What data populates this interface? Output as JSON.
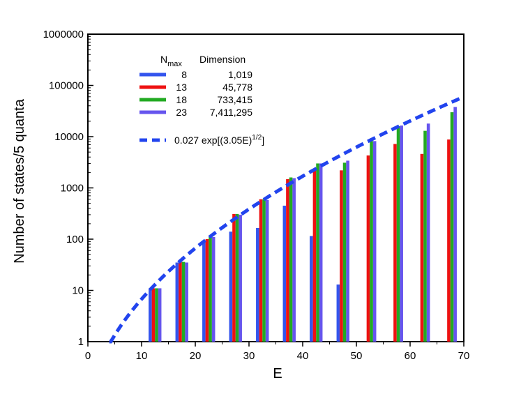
{
  "chart_data": {
    "type": "bar",
    "xlabel": "E",
    "ylabel": "Number of states/5 quanta",
    "xlim": [
      0,
      70
    ],
    "ylim": [
      1,
      1000000
    ],
    "yscale": "log",
    "x_ticks": [
      "0",
      "10",
      "20",
      "30",
      "40",
      "50",
      "60",
      "70"
    ],
    "y_ticks": [
      "1",
      "10",
      "100",
      "1000",
      "10000",
      "100000",
      "1000000"
    ],
    "grid": false,
    "legend_position": "top-left",
    "legend_header": {
      "nmax": "N",
      "nmax_sub": "max",
      "dimension": "Dimension"
    },
    "categories": [
      12.5,
      17.5,
      22.5,
      27.5,
      32.5,
      37.5,
      42.5,
      47.5,
      52.5,
      57.5,
      62.5,
      67.5
    ],
    "series": [
      {
        "name": "8",
        "dimension": "1,019",
        "color": "#3355ee",
        "values": [
          11,
          35,
          90,
          140,
          165,
          450,
          115,
          13,
          null,
          null,
          null,
          null
        ]
      },
      {
        "name": "13",
        "dimension": "45,778",
        "color": "#ee1111",
        "values": [
          11,
          36,
          100,
          310,
          600,
          1480,
          2200,
          2200,
          4300,
          7200,
          4600,
          8800
        ]
      },
      {
        "name": "18",
        "dimension": "733,415",
        "color": "#22aa22",
        "values": [
          11,
          36,
          110,
          310,
          600,
          1600,
          3000,
          3100,
          8200,
          16000,
          13000,
          30000
        ]
      },
      {
        "name": "23",
        "dimension": "7,411,295",
        "color": "#6655ee",
        "values": [
          11,
          35,
          110,
          300,
          580,
          1550,
          3000,
          3400,
          8200,
          16500,
          18000,
          38000
        ]
      }
    ],
    "fit_curve": {
      "label_prefix": "0.027 exp[(3.05E)",
      "label_exponent": "1/2",
      "label_suffix": "]",
      "coefficient": 0.027,
      "factor": 3.05,
      "x_range": [
        4,
        70
      ],
      "color": "#2244ee"
    }
  }
}
